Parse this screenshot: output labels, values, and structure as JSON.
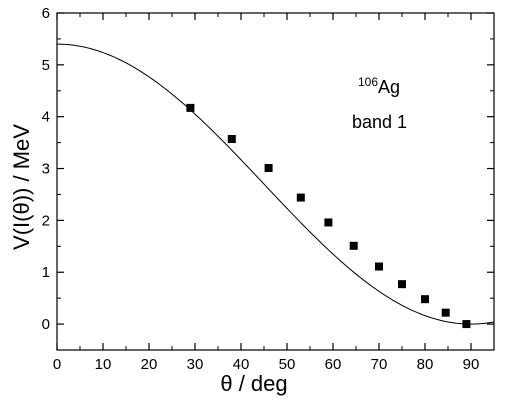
{
  "chart_data": {
    "type": "scatter",
    "title": "",
    "xlabel": "θ / deg",
    "ylabel": "V(I(θ)) / MeV",
    "xlim": [
      0,
      95
    ],
    "ylim": [
      -0.5,
      6
    ],
    "xticks": [
      "0",
      "10",
      "20",
      "30",
      "40",
      "50",
      "60",
      "70",
      "80",
      "90"
    ],
    "yticks": [
      "0",
      "1",
      "2",
      "3",
      "4",
      "5",
      "6"
    ],
    "grid": false,
    "annotation": {
      "superscript": "106",
      "nucleus": "Ag",
      "band": "band 1"
    },
    "series": [
      {
        "style": "markers",
        "marker": "square",
        "x": [
          29,
          38,
          46,
          53,
          59,
          64.5,
          70,
          75,
          80,
          84.5,
          89
        ],
        "y": [
          4.17,
          3.57,
          3.01,
          2.44,
          1.96,
          1.51,
          1.11,
          0.77,
          0.48,
          0.22,
          0.0
        ]
      },
      {
        "style": "line",
        "function": "2.7*(1+cos(2*theta))",
        "x": [
          0,
          5,
          10,
          15,
          20,
          25,
          30,
          35,
          40,
          45,
          50,
          55,
          60,
          65,
          70,
          75,
          80,
          85,
          90,
          95
        ],
        "y": [
          5.4,
          5.36,
          5.24,
          5.04,
          4.77,
          4.44,
          4.05,
          3.62,
          3.17,
          2.7,
          2.23,
          1.78,
          1.35,
          0.96,
          0.63,
          0.36,
          0.16,
          0.04,
          0.0,
          0.04
        ]
      }
    ]
  }
}
